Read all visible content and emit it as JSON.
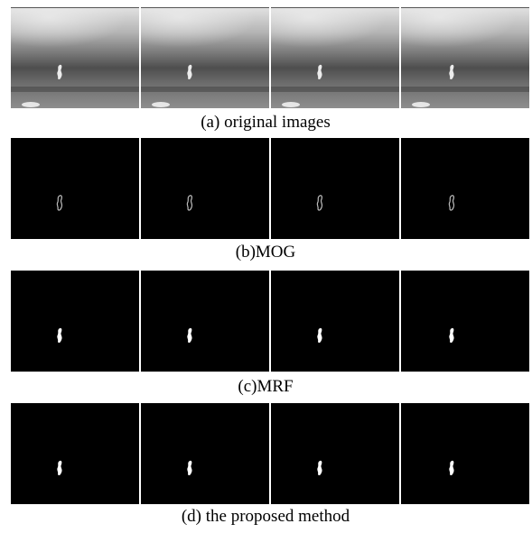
{
  "panels": [
    {
      "caption": "(a) original images"
    },
    {
      "caption": "(b)MOG"
    },
    {
      "caption": "(c)MRF"
    },
    {
      "caption": "(d) the proposed method"
    }
  ]
}
